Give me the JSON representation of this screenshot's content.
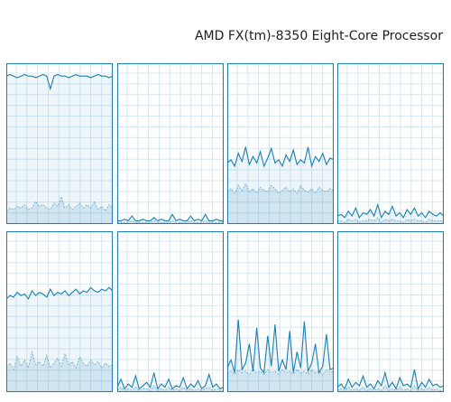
{
  "header": {
    "title": "AMD FX(tm)-8350 Eight-Core Processor"
  },
  "chart_data": [
    {
      "type": "line",
      "ylim": [
        0,
        100
      ],
      "color": "#1a7fb5",
      "grid": true,
      "series": [
        {
          "values": [
            92,
            93,
            92,
            91,
            92,
            93,
            92,
            92,
            91,
            92,
            93,
            92,
            84,
            92,
            93,
            92,
            92,
            91,
            92,
            93,
            92,
            92,
            92,
            91,
            92,
            93,
            92,
            92,
            91,
            92
          ]
        },
        {
          "style": "dashed",
          "values": [
            8,
            10,
            9,
            11,
            10,
            12,
            9,
            10,
            14,
            11,
            12,
            10,
            9,
            13,
            11,
            17,
            10,
            12,
            9,
            11,
            13,
            10,
            12,
            10,
            14,
            9,
            11,
            8,
            12,
            10
          ]
        }
      ]
    },
    {
      "type": "line",
      "ylim": [
        0,
        100
      ],
      "color": "#1a7fb5",
      "grid": true,
      "series": [
        {
          "values": [
            2,
            2,
            3,
            2,
            5,
            2,
            2,
            3,
            2,
            2,
            4,
            2,
            3,
            2,
            2,
            6,
            2,
            3,
            2,
            2,
            5,
            2,
            3,
            2,
            6,
            2,
            2,
            3,
            2,
            2
          ]
        },
        {
          "style": "dashed",
          "values": [
            1,
            1,
            1,
            1,
            2,
            1,
            1,
            1,
            1,
            1,
            2,
            1,
            1,
            1,
            1,
            2,
            1,
            1,
            1,
            1,
            2,
            1,
            1,
            1,
            2,
            1,
            1,
            1,
            1,
            1
          ]
        }
      ]
    },
    {
      "type": "line",
      "ylim": [
        0,
        100
      ],
      "color": "#1a7fb5",
      "grid": true,
      "series": [
        {
          "values": [
            38,
            40,
            36,
            44,
            39,
            48,
            37,
            42,
            38,
            45,
            36,
            41,
            47,
            38,
            40,
            36,
            43,
            39,
            46,
            37,
            40,
            38,
            48,
            36,
            42,
            39,
            44,
            37,
            41,
            40
          ]
        },
        {
          "style": "dashed",
          "values": [
            20,
            22,
            19,
            24,
            21,
            25,
            20,
            22,
            19,
            23,
            21,
            20,
            24,
            22,
            19,
            21,
            23,
            20,
            22,
            19,
            24,
            21,
            20,
            22,
            19,
            23,
            21,
            20,
            22,
            21
          ]
        }
      ]
    },
    {
      "type": "line",
      "ylim": [
        0,
        100
      ],
      "color": "#1a7fb5",
      "grid": true,
      "series": [
        {
          "values": [
            5,
            6,
            4,
            8,
            5,
            10,
            4,
            7,
            6,
            9,
            5,
            12,
            4,
            8,
            6,
            11,
            5,
            7,
            4,
            9,
            6,
            10,
            5,
            7,
            4,
            8,
            6,
            5,
            7,
            5
          ]
        },
        {
          "style": "dashed",
          "values": [
            2,
            2,
            1,
            3,
            2,
            3,
            1,
            2,
            2,
            3,
            2,
            4,
            1,
            3,
            2,
            3,
            2,
            2,
            1,
            3,
            2,
            3,
            2,
            2,
            1,
            3,
            2,
            2,
            2,
            2
          ]
        }
      ]
    },
    {
      "type": "line",
      "ylim": [
        0,
        100
      ],
      "color": "#1a7fb5",
      "grid": true,
      "series": [
        {
          "values": [
            58,
            60,
            59,
            62,
            60,
            61,
            58,
            63,
            60,
            62,
            61,
            59,
            64,
            60,
            62,
            61,
            63,
            60,
            62,
            64,
            61,
            63,
            62,
            65,
            63,
            62,
            64,
            63,
            65,
            63
          ]
        },
        {
          "style": "dashed",
          "values": [
            15,
            18,
            14,
            22,
            16,
            20,
            15,
            25,
            17,
            19,
            16,
            23,
            15,
            18,
            21,
            16,
            24,
            17,
            19,
            15,
            22,
            18,
            16,
            20,
            17,
            19,
            15,
            18,
            16,
            17
          ]
        }
      ]
    },
    {
      "type": "line",
      "ylim": [
        0,
        100
      ],
      "color": "#1a7fb5",
      "grid": true,
      "series": [
        {
          "values": [
            3,
            8,
            2,
            5,
            3,
            10,
            2,
            4,
            6,
            3,
            12,
            2,
            5,
            3,
            8,
            2,
            4,
            3,
            9,
            2,
            5,
            3,
            7,
            2,
            4,
            11,
            3,
            5,
            2,
            3
          ]
        },
        {
          "style": "dashed",
          "values": [
            1,
            3,
            1,
            2,
            1,
            3,
            1,
            2,
            2,
            1,
            4,
            1,
            2,
            1,
            3,
            1,
            2,
            1,
            3,
            1,
            2,
            1,
            2,
            1,
            2,
            3,
            1,
            2,
            1,
            1
          ]
        }
      ]
    },
    {
      "type": "line",
      "ylim": [
        0,
        100
      ],
      "color": "#1a7fb5",
      "grid": true,
      "series": [
        {
          "values": [
            15,
            20,
            12,
            45,
            14,
            18,
            30,
            13,
            40,
            15,
            12,
            35,
            16,
            42,
            13,
            20,
            14,
            38,
            12,
            25,
            15,
            44,
            13,
            18,
            30,
            12,
            16,
            36,
            14,
            15
          ]
        },
        {
          "style": "dashed",
          "values": [
            12,
            13,
            11,
            14,
            12,
            13,
            11,
            14,
            12,
            13,
            11,
            14,
            12,
            13,
            11,
            14,
            12,
            13,
            11,
            14,
            12,
            13,
            11,
            14,
            12,
            13,
            11,
            14,
            12,
            13
          ]
        }
      ]
    },
    {
      "type": "line",
      "ylim": [
        0,
        100
      ],
      "color": "#1a7fb5",
      "grid": true,
      "series": [
        {
          "values": [
            3,
            5,
            2,
            8,
            3,
            6,
            4,
            10,
            3,
            5,
            2,
            7,
            4,
            12,
            3,
            6,
            2,
            9,
            4,
            5,
            3,
            14,
            2,
            6,
            3,
            8,
            4,
            5,
            3,
            4
          ]
        },
        {
          "style": "dashed",
          "values": [
            1,
            2,
            1,
            3,
            1,
            2,
            1,
            3,
            1,
            2,
            1,
            2,
            1,
            4,
            1,
            2,
            1,
            3,
            1,
            2,
            1,
            4,
            1,
            2,
            1,
            3,
            1,
            2,
            1,
            1
          ]
        }
      ]
    }
  ]
}
